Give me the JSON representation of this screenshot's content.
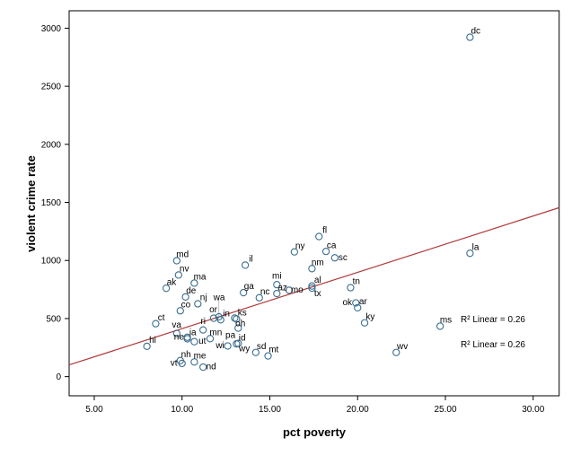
{
  "chart_data": {
    "type": "scatter",
    "xlabel": "pct poverty",
    "ylabel": "violent crime rate",
    "xlim": [
      3.57,
      31.48
    ],
    "ylim": [
      -165,
      3150
    ],
    "xticks": [
      "5.00",
      "10.00",
      "15.00",
      "20.00",
      "25.00",
      "30.00"
    ],
    "xtick_values": [
      5,
      10,
      15,
      20,
      25,
      30
    ],
    "yticks": [
      "0",
      "500",
      "1000",
      "1500",
      "2000",
      "2500",
      "3000"
    ],
    "ytick_values": [
      0,
      500,
      1000,
      1500,
      2000,
      2500,
      3000
    ],
    "grid": false,
    "point_color": "#3a6e8f",
    "line_color": "#b03a3a",
    "fit_line": {
      "intercept": -72,
      "slope": 48.5
    },
    "annotations": [
      "R² Linear = 0.26",
      "R² Linear = 0.26"
    ],
    "points": [
      {
        "label": "ak",
        "x": 9.1,
        "y": 761
      },
      {
        "label": "al",
        "x": 17.4,
        "y": 780
      },
      {
        "label": "ar",
        "x": 20.0,
        "y": 593
      },
      {
        "label": "az",
        "x": 15.4,
        "y": 715
      },
      {
        "label": "ca",
        "x": 18.2,
        "y": 1078
      },
      {
        "label": "co",
        "x": 9.9,
        "y": 567
      },
      {
        "label": "ct",
        "x": 8.5,
        "y": 456
      },
      {
        "label": "de",
        "x": 10.2,
        "y": 686
      },
      {
        "label": "fl",
        "x": 17.8,
        "y": 1206
      },
      {
        "label": "ga",
        "x": 13.5,
        "y": 723
      },
      {
        "label": "hi",
        "x": 8.0,
        "y": 261
      },
      {
        "label": "ia",
        "x": 10.3,
        "y": 326
      },
      {
        "label": "id",
        "x": 13.1,
        "y": 282
      },
      {
        "label": "il",
        "x": 13.6,
        "y": 960
      },
      {
        "label": "in",
        "x": 12.2,
        "y": 489
      },
      {
        "label": "ks",
        "x": 13.1,
        "y": 496
      },
      {
        "label": "ky",
        "x": 20.4,
        "y": 463
      },
      {
        "label": "la",
        "x": 26.4,
        "y": 1062
      },
      {
        "label": "ma",
        "x": 10.7,
        "y": 805
      },
      {
        "label": "md",
        "x": 9.7,
        "y": 998
      },
      {
        "label": "me",
        "x": 10.7,
        "y": 126
      },
      {
        "label": "mi",
        "x": 15.4,
        "y": 792
      },
      {
        "label": "mn",
        "x": 11.6,
        "y": 327
      },
      {
        "label": "mo",
        "x": 16.1,
        "y": 744
      },
      {
        "label": "ms",
        "x": 24.7,
        "y": 434
      },
      {
        "label": "mt",
        "x": 14.9,
        "y": 178
      },
      {
        "label": "nc",
        "x": 14.4,
        "y": 679
      },
      {
        "label": "nd",
        "x": 11.2,
        "y": 82
      },
      {
        "label": "ne",
        "x": 10.3,
        "y": 339
      },
      {
        "label": "nh",
        "x": 9.9,
        "y": 138
      },
      {
        "label": "nj",
        "x": 10.9,
        "y": 627
      },
      {
        "label": "nm",
        "x": 17.4,
        "y": 930
      },
      {
        "label": "nv",
        "x": 9.8,
        "y": 875
      },
      {
        "label": "ny",
        "x": 16.4,
        "y": 1074
      },
      {
        "label": "oh",
        "x": 13.0,
        "y": 504
      },
      {
        "label": "ok",
        "x": 19.9,
        "y": 635
      },
      {
        "label": "or",
        "x": 11.8,
        "y": 503
      },
      {
        "label": "pa",
        "x": 13.2,
        "y": 418
      },
      {
        "label": "ri",
        "x": 11.2,
        "y": 402
      },
      {
        "label": "sc",
        "x": 18.7,
        "y": 1023
      },
      {
        "label": "sd",
        "x": 14.2,
        "y": 208
      },
      {
        "label": "tn",
        "x": 19.6,
        "y": 766
      },
      {
        "label": "tx",
        "x": 17.4,
        "y": 762
      },
      {
        "label": "ut",
        "x": 10.7,
        "y": 301
      },
      {
        "label": "va",
        "x": 9.7,
        "y": 372
      },
      {
        "label": "vt",
        "x": 10.0,
        "y": 114
      },
      {
        "label": "wa",
        "x": 12.1,
        "y": 515
      },
      {
        "label": "wi",
        "x": 12.6,
        "y": 264
      },
      {
        "label": "wv",
        "x": 22.2,
        "y": 208
      },
      {
        "label": "wy",
        "x": 13.2,
        "y": 286
      },
      {
        "label": "dc",
        "x": 26.4,
        "y": 2922
      }
    ]
  }
}
